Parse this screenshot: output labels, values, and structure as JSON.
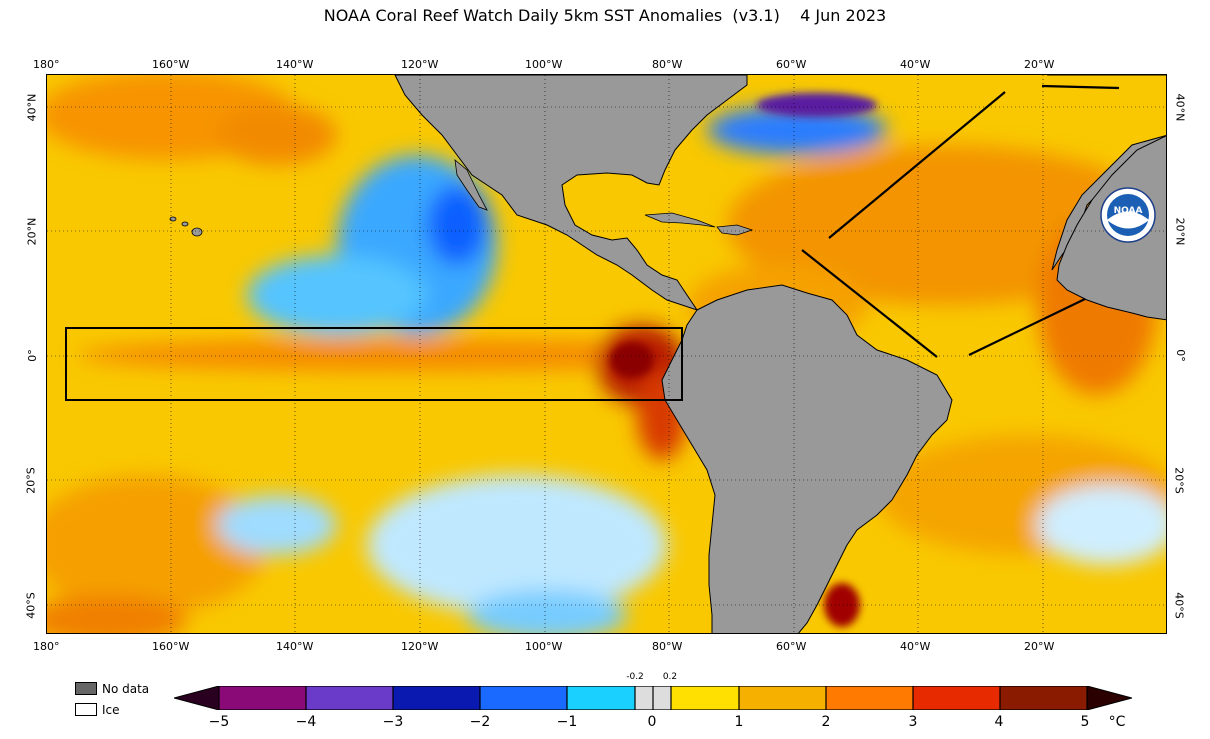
{
  "title": "NOAA Coral Reef Watch Daily 5km SST Anomalies  (v3.1)    4 Jun 2023",
  "lon_labels_top": [
    "180°",
    "160°W",
    "140°W",
    "120°W",
    "100°W",
    "80°W",
    "60°W",
    "40°W",
    "20°W"
  ],
  "lon_labels_bottom": [
    "180°",
    "160°W",
    "140°W",
    "120°W",
    "100°W",
    "80°W",
    "60°W",
    "40°W",
    "20°W"
  ],
  "lat_labels_left": [
    "40°N",
    "20°N",
    "0°",
    "20°S",
    "40°S"
  ],
  "lat_labels_right": [
    "40°N",
    "20°N",
    "0°",
    "20°S",
    "40°S"
  ],
  "legend": {
    "nodata": "No data",
    "ice": "Ice"
  },
  "colorbar": {
    "ticks": [
      "−5",
      "−4",
      "−3",
      "−2",
      "−1",
      "0",
      "1",
      "2",
      "3",
      "4",
      "5"
    ],
    "small_ticks": [
      "-0.2",
      "0.2"
    ],
    "unit": "°C"
  },
  "colors": {
    "land": "#999999",
    "ocean_base": "#f7c600",
    "nodata": "#666666"
  },
  "logo_text": "NOAA"
}
